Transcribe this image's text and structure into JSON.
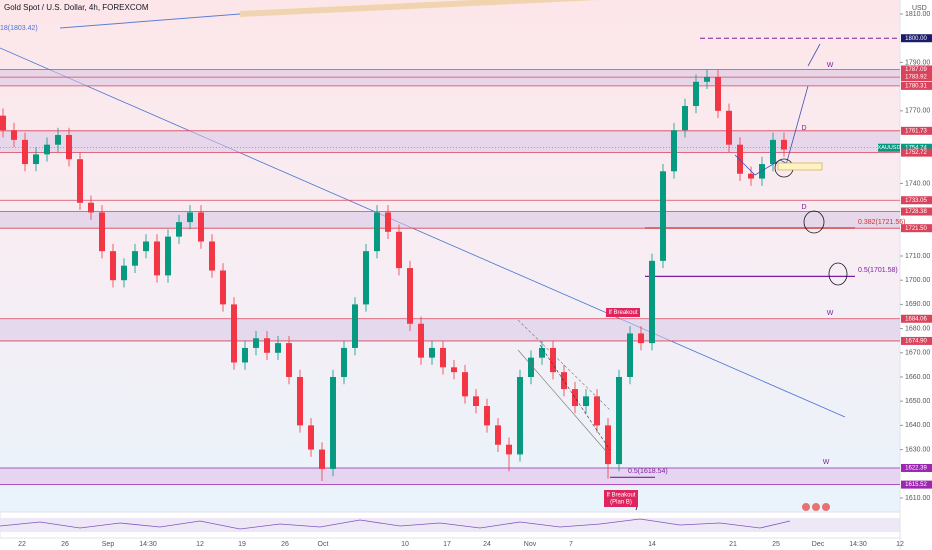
{
  "chart_data": {
    "type": "candlestick",
    "title": "Gold Spot / U.S. Dollar, 4h, FOREXCOM",
    "currency": "USD",
    "symbol": "XAUUSD",
    "up_color": "#089981",
    "down_color": "#f23645",
    "ylim": [
      1604.2,
      1815.8
    ],
    "yticks": [
      {
        "value": 1610,
        "label": "1610.00"
      },
      {
        "value": 1630,
        "label": "1630.00"
      },
      {
        "value": 1640,
        "label": "1640.00"
      },
      {
        "value": 1650,
        "label": "1650.00"
      },
      {
        "value": 1660,
        "label": "1660.00"
      },
      {
        "value": 1670,
        "label": "1670.00"
      },
      {
        "value": 1680,
        "label": "1680.00"
      },
      {
        "value": 1690,
        "label": "1690.00"
      },
      {
        "value": 1700,
        "label": "1700.00"
      },
      {
        "value": 1710,
        "label": "1710.00"
      },
      {
        "value": 1740,
        "label": "1740.00"
      },
      {
        "value": 1770,
        "label": "1770.00"
      },
      {
        "value": 1790,
        "label": "1790.00"
      },
      {
        "value": 1810,
        "label": "1810.00"
      }
    ],
    "time_labels": [
      "22",
      "26",
      "Sep",
      "14:30",
      "12",
      "19",
      "26",
      "Oct",
      "10",
      "17",
      "24",
      "Nov",
      "7",
      "14",
      "21",
      "25",
      "Dec",
      "14:30",
      "12"
    ],
    "open": [
      1768,
      1762,
      1758,
      1748,
      1752,
      1756,
      1760,
      1750,
      1732,
      1728,
      1712,
      1700,
      1706,
      1712,
      1716,
      1702,
      1718,
      1724,
      1728,
      1716,
      1704,
      1690,
      1666,
      1672,
      1676,
      1670,
      1674,
      1660,
      1640,
      1630,
      1622,
      1660,
      1672,
      1690,
      1712,
      1728,
      1720,
      1705,
      1682,
      1668,
      1672,
      1664,
      1662,
      1652,
      1648,
      1640,
      1632,
      1628,
      1660,
      1668,
      1672,
      1662,
      1655,
      1648,
      1652,
      1640,
      1624,
      1660,
      1678,
      1674,
      1708,
      1745,
      1762,
      1772,
      1782,
      1784,
      1770,
      1756,
      1744,
      1742,
      1748,
      1758
    ],
    "high": [
      1771,
      1765,
      1761,
      1755,
      1759,
      1763,
      1763,
      1753,
      1735,
      1731,
      1715,
      1709,
      1715,
      1719,
      1719,
      1721,
      1727,
      1731,
      1731,
      1719,
      1707,
      1693,
      1675,
      1679,
      1679,
      1677,
      1677,
      1663,
      1643,
      1633,
      1663,
      1675,
      1693,
      1715,
      1731,
      1731,
      1723,
      1708,
      1685,
      1675,
      1675,
      1667,
      1665,
      1655,
      1651,
      1643,
      1635,
      1663,
      1671,
      1675,
      1675,
      1665,
      1658,
      1655,
      1655,
      1643,
      1663,
      1681,
      1681,
      1711,
      1748,
      1765,
      1775,
      1785,
      1787,
      1787,
      1773,
      1759,
      1747,
      1751,
      1761,
      1761
    ],
    "low": [
      1759,
      1755,
      1745,
      1745,
      1749,
      1753,
      1747,
      1729,
      1725,
      1709,
      1697,
      1697,
      1703,
      1709,
      1699,
      1699,
      1715,
      1721,
      1713,
      1701,
      1687,
      1663,
      1663,
      1669,
      1667,
      1667,
      1657,
      1637,
      1627,
      1617,
      1619,
      1657,
      1669,
      1687,
      1709,
      1717,
      1702,
      1679,
      1665,
      1665,
      1661,
      1659,
      1649,
      1645,
      1637,
      1629,
      1621,
      1625,
      1657,
      1665,
      1659,
      1652,
      1645,
      1645,
      1637,
      1618,
      1621,
      1657,
      1671,
      1671,
      1705,
      1742,
      1759,
      1769,
      1779,
      1767,
      1753,
      1741,
      1739,
      1739,
      1745,
      1751
    ],
    "close": [
      1762,
      1758,
      1748,
      1752,
      1756,
      1760,
      1750,
      1732,
      1728,
      1712,
      1700,
      1706,
      1712,
      1716,
      1702,
      1718,
      1724,
      1728,
      1716,
      1704,
      1690,
      1666,
      1672,
      1676,
      1670,
      1674,
      1660,
      1640,
      1630,
      1622,
      1660,
      1672,
      1690,
      1712,
      1728,
      1720,
      1705,
      1682,
      1668,
      1672,
      1664,
      1662,
      1652,
      1648,
      1640,
      1632,
      1628,
      1660,
      1668,
      1672,
      1662,
      1655,
      1648,
      1652,
      1640,
      1624,
      1660,
      1678,
      1674,
      1708,
      1745,
      1762,
      1772,
      1782,
      1784,
      1770,
      1756,
      1744,
      1742,
      1748,
      1758,
      1754
    ],
    "price_levels": [
      {
        "value": 1800,
        "label": "1800.00",
        "color": "#1b1b6b"
      },
      {
        "value": 1787.09,
        "label": "1787.09",
        "color": "#d9435c"
      },
      {
        "value": 1783.92,
        "label": "1783.92",
        "color": "#d9435c"
      },
      {
        "value": 1780.31,
        "label": "1780.31",
        "color": "#d9435c"
      },
      {
        "value": 1761.73,
        "label": "1761.73",
        "color": "#d9435c"
      },
      {
        "value": 1754.74,
        "label": "1754.74",
        "color": "#089981"
      },
      {
        "value": 1752.72,
        "label": "1752.72",
        "color": "#d9435c"
      },
      {
        "value": 1733.05,
        "label": "1733.05",
        "color": "#d9435c"
      },
      {
        "value": 1728.38,
        "label": "1728.38",
        "color": "#d9435c"
      },
      {
        "value": 1721.5,
        "label": "1721.50",
        "color": "#d9435c"
      },
      {
        "value": 1684.06,
        "label": "1684.06",
        "color": "#d9435c"
      },
      {
        "value": 1674.9,
        "label": "1674.90",
        "color": "#d9435c"
      },
      {
        "value": 1622.39,
        "label": "1622.39",
        "color": "#9c27b0"
      },
      {
        "value": 1615.52,
        "label": "1615.52",
        "color": "#9c27b0"
      }
    ],
    "fib_levels": [
      {
        "value": 1721.56,
        "label": "0.382(1721.56)"
      },
      {
        "value": 1701.58,
        "label": "0.5(1701.58)"
      },
      {
        "value": 1618.54,
        "label": "0.5(1618.54)"
      }
    ],
    "top_left_label": "18(1803.42)",
    "timeframe_marks": [
      "W",
      "D",
      "D",
      "W",
      "W"
    ],
    "breakout_labels": [
      "If Breakout",
      "If Breakout",
      "(Plan B)"
    ]
  }
}
